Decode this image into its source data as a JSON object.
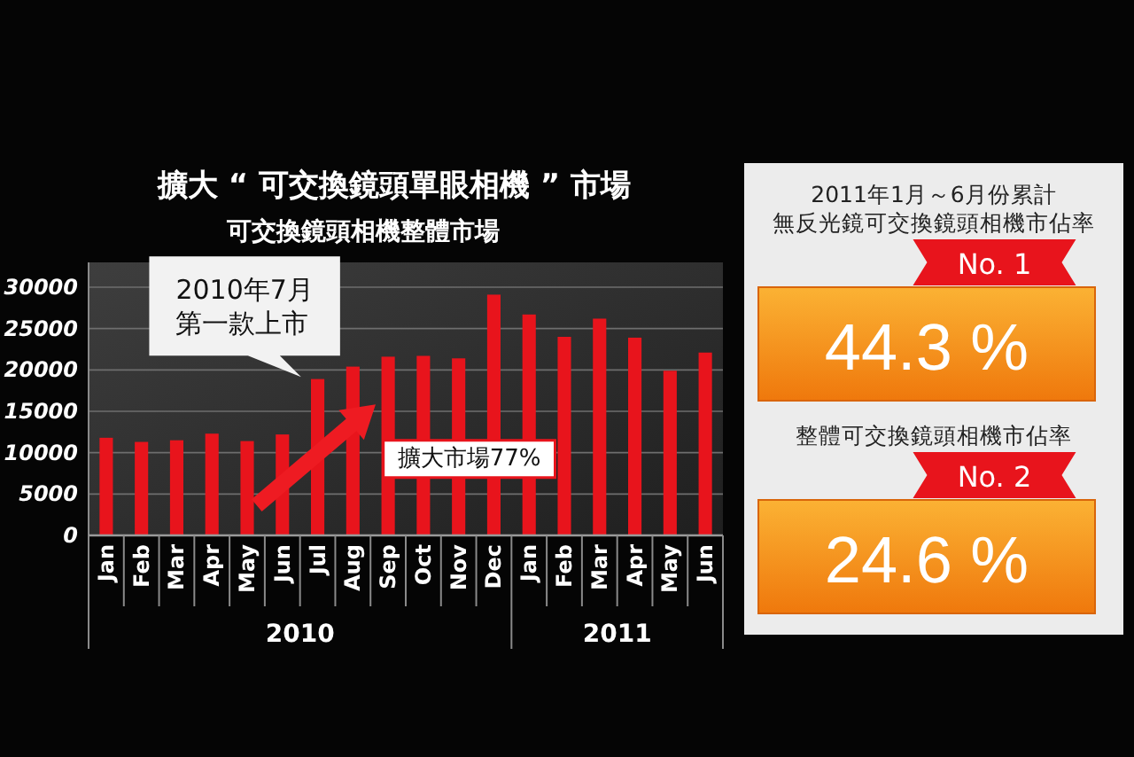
{
  "chart_data": [
    {
      "type": "bar",
      "title": "擴大 “ 可交換鏡頭單眼相機 ” 市場",
      "subtitle": "可交換鏡頭相機整體市場",
      "categories": [
        "Jan",
        "Feb",
        "Mar",
        "Apr",
        "May",
        "Jun",
        "Jul",
        "Aug",
        "Sep",
        "Oct",
        "Nov",
        "Dec",
        "Jan",
        "Feb",
        "Mar",
        "Apr",
        "May",
        "Jun"
      ],
      "values": [
        11800,
        11300,
        11500,
        12300,
        11400,
        12200,
        18900,
        20400,
        21600,
        21700,
        21400,
        29100,
        26700,
        24000,
        26200,
        23900,
        19900,
        22100
      ],
      "color": "#e8141c",
      "ylim": [
        0,
        33000
      ],
      "yticks": [
        0,
        5000,
        10000,
        15000,
        20000,
        25000,
        30000
      ],
      "grid": "y",
      "annotations": [
        "2010年7月第一款上市",
        "擴大市場77%",
        "2010",
        "2011"
      ]
    },
    {
      "type": "other",
      "annotations": [
        "2011年1月～6月份累計無反光鏡可交換鏡頭相機市佔率",
        "No. 1",
        "44.3 %",
        "整體可交換鏡頭相機市佔率",
        "No. 2",
        "24.6 %"
      ]
    }
  ]
}
